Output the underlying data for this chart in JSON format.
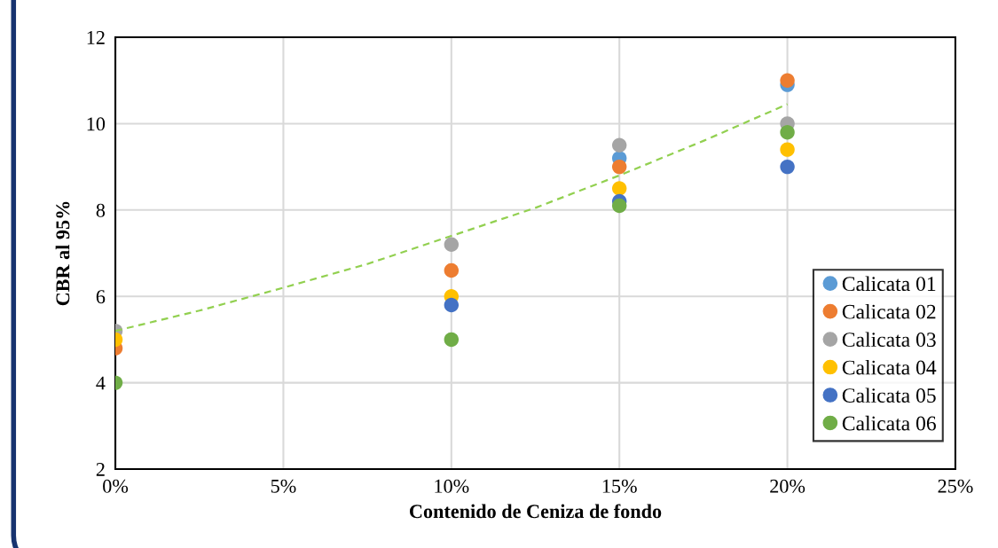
{
  "chart_data": {
    "type": "scatter",
    "xlabel": "Contenido de Ceniza de fondo",
    "ylabel": "CBR al 95%",
    "x": [
      0,
      10,
      15,
      20
    ],
    "series": [
      {
        "name": "Calicata 01",
        "color": "#5b9bd5",
        "values": [
          null,
          null,
          9.2,
          10.9
        ]
      },
      {
        "name": "Calicata 02",
        "color": "#ed7d31",
        "values": [
          4.8,
          6.6,
          9.0,
          11.0
        ]
      },
      {
        "name": "Calicata 03",
        "color": "#a5a5a5",
        "values": [
          5.2,
          7.2,
          9.5,
          10.0
        ]
      },
      {
        "name": "Calicata 04",
        "color": "#ffc000",
        "values": [
          5.0,
          6.0,
          8.5,
          9.4
        ]
      },
      {
        "name": "Calicata 05",
        "color": "#4472c4",
        "values": [
          null,
          5.8,
          8.2,
          9.0
        ]
      },
      {
        "name": "Calicata 06",
        "color": "#70ad47",
        "values": [
          4.0,
          5.0,
          8.1,
          9.8
        ]
      },
      {
        "type": "line",
        "color": "#92d050",
        "line_style": "dashed",
        "marker": "none",
        "x": [
          0,
          2.5,
          5,
          7.5,
          10,
          12.5,
          15,
          17.5,
          20
        ],
        "values": [
          5.2,
          5.67,
          6.2,
          6.75,
          7.4,
          8.05,
          8.8,
          9.6,
          10.45
        ]
      }
    ],
    "marker": "circle",
    "xlim": [
      0,
      25
    ],
    "xticks": [
      {
        "value": 0,
        "label": "0%"
      },
      {
        "value": 5,
        "label": "5%"
      },
      {
        "value": 10,
        "label": "10%"
      },
      {
        "value": 15,
        "label": "15%"
      },
      {
        "value": 20,
        "label": "20%"
      },
      {
        "value": 25,
        "label": "25%"
      }
    ],
    "ylim": [
      2,
      12
    ],
    "yticks": [
      2,
      4,
      6,
      8,
      10,
      12
    ],
    "grid": true,
    "legend": "bottom right"
  }
}
